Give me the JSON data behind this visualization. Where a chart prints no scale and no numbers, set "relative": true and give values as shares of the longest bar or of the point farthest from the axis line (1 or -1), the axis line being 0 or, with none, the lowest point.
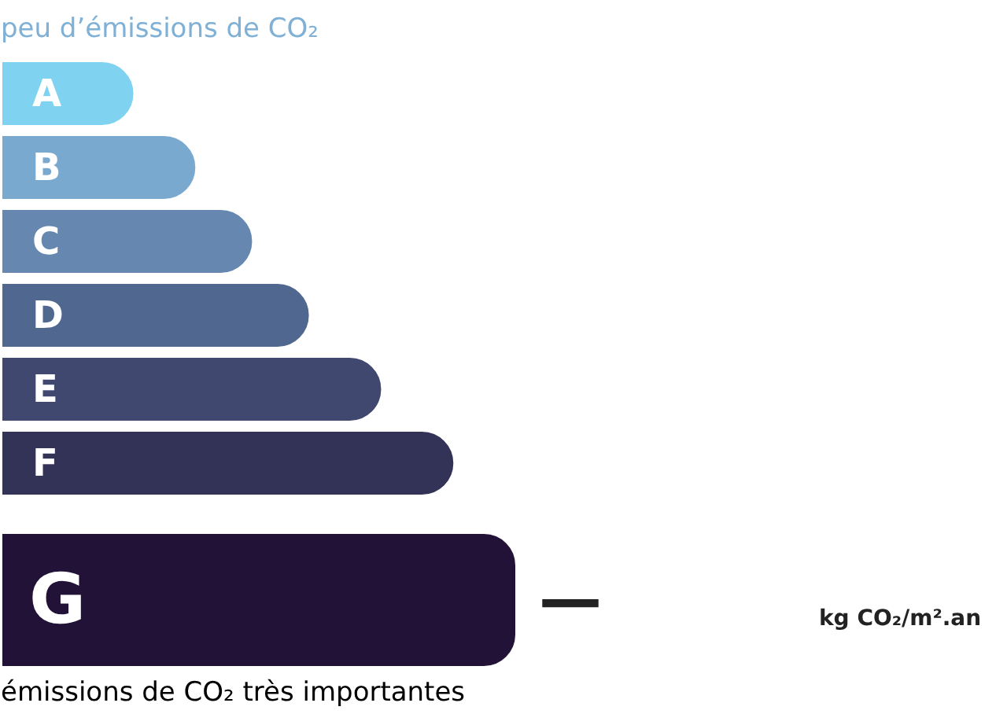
{
  "chart_data": {
    "type": "bar",
    "orientation": "horizontal",
    "relative": true,
    "title": "peu d’émissions de CO₂",
    "categories": [
      "A",
      "B",
      "C",
      "D",
      "E",
      "F",
      "G"
    ],
    "values": [
      0.26,
      0.38,
      0.49,
      0.6,
      0.74,
      0.88,
      1
    ],
    "colors": [
      "#7fd3f0",
      "#7aa9d0",
      "#6688b0",
      "#506890",
      "#404870",
      "#333358",
      "#221238"
    ],
    "annotations": [
      "émissions de CO₂ très importantes",
      "—",
      "kg CO₂/m².an"
    ],
    "grid": false
  }
}
